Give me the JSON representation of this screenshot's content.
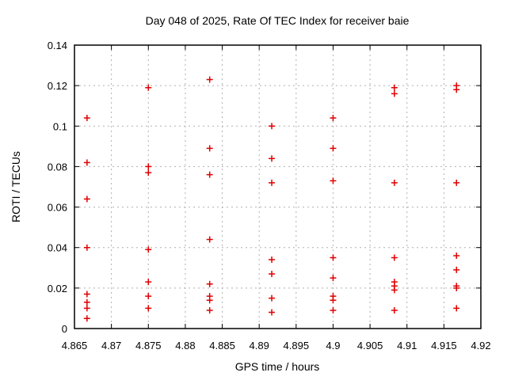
{
  "chart_data": {
    "type": "scatter",
    "title": "Day 048 of 2025, Rate Of TEC Index for receiver baie",
    "xlabel": "GPS time / hours",
    "ylabel": "ROTI / TECUs",
    "xlim": [
      4.865,
      4.92
    ],
    "ylim": [
      0,
      0.14
    ],
    "x_ticks": [
      "4.865",
      "4.87",
      "4.875",
      "4.88",
      "4.885",
      "4.89",
      "4.895",
      "4.9",
      "4.905",
      "4.91",
      "4.915",
      "4.92"
    ],
    "y_ticks": [
      "0",
      "0.02",
      "0.04",
      "0.06",
      "0.08",
      "0.1",
      "0.12",
      "0.14"
    ],
    "grid": true,
    "legend_position": "none",
    "marker": {
      "shape": "plus",
      "color": "#e00000",
      "size": 8
    },
    "grid_color": "#b0b0b0",
    "axis_color": "#000000",
    "series": [
      {
        "name": "ROTI",
        "points": [
          [
            4.8667,
            0.104
          ],
          [
            4.8667,
            0.082
          ],
          [
            4.8667,
            0.064
          ],
          [
            4.8667,
            0.04
          ],
          [
            4.8667,
            0.017
          ],
          [
            4.8667,
            0.013
          ],
          [
            4.8667,
            0.01
          ],
          [
            4.8667,
            0.005
          ],
          [
            4.875,
            0.119
          ],
          [
            4.875,
            0.08
          ],
          [
            4.875,
            0.077
          ],
          [
            4.875,
            0.039
          ],
          [
            4.875,
            0.023
          ],
          [
            4.875,
            0.016
          ],
          [
            4.875,
            0.01
          ],
          [
            4.8833,
            0.123
          ],
          [
            4.8833,
            0.089
          ],
          [
            4.8833,
            0.076
          ],
          [
            4.8833,
            0.044
          ],
          [
            4.8833,
            0.022
          ],
          [
            4.8833,
            0.016
          ],
          [
            4.8833,
            0.014
          ],
          [
            4.8833,
            0.009
          ],
          [
            4.8917,
            0.1
          ],
          [
            4.8917,
            0.084
          ],
          [
            4.8917,
            0.072
          ],
          [
            4.8917,
            0.034
          ],
          [
            4.8917,
            0.027
          ],
          [
            4.8917,
            0.015
          ],
          [
            4.8917,
            0.008
          ],
          [
            4.9,
            0.104
          ],
          [
            4.9,
            0.089
          ],
          [
            4.9,
            0.073
          ],
          [
            4.9,
            0.035
          ],
          [
            4.9,
            0.025
          ],
          [
            4.9,
            0.016
          ],
          [
            4.9,
            0.014
          ],
          [
            4.9,
            0.009
          ],
          [
            4.9083,
            0.119
          ],
          [
            4.9083,
            0.116
          ],
          [
            4.9083,
            0.072
          ],
          [
            4.9083,
            0.035
          ],
          [
            4.9083,
            0.023
          ],
          [
            4.9083,
            0.021
          ],
          [
            4.9083,
            0.019
          ],
          [
            4.9083,
            0.009
          ],
          [
            4.9167,
            0.12
          ],
          [
            4.9167,
            0.118
          ],
          [
            4.9167,
            0.072
          ],
          [
            4.9167,
            0.036
          ],
          [
            4.9167,
            0.029
          ],
          [
            4.9167,
            0.021
          ],
          [
            4.9167,
            0.02
          ],
          [
            4.9167,
            0.01
          ]
        ]
      }
    ]
  }
}
